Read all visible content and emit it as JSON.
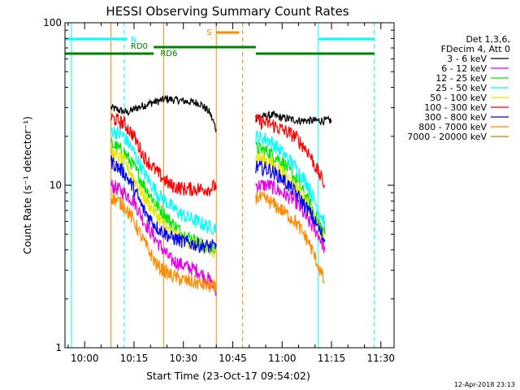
{
  "chart_data": {
    "type": "line",
    "title": "HESSI Observing Summary Count Rates",
    "xlabel": "Start Time (23-Oct-17 09:54:02)",
    "ylabel": "Count Rate (s⁻¹ detector⁻¹)",
    "y_scale": "log",
    "ylim": [
      1,
      100
    ],
    "y_ticks": [
      {
        "value": 1,
        "label": "1"
      },
      {
        "value": 10,
        "label": "10"
      },
      {
        "value": 100,
        "label": "100"
      }
    ],
    "xlim": [
      "09:54:02",
      "11:34:00"
    ],
    "x_ticks": [
      "10:00",
      "10:15",
      "10:30",
      "10:45",
      "11:00",
      "11:15",
      "11:30"
    ],
    "legend_header": [
      "Det 1,3,6,",
      "FDecim 4, Att 0"
    ],
    "series": [
      {
        "name": "3 - 6 keV",
        "color": "#000000",
        "x": [
          "10:08",
          "10:13",
          "10:16",
          "10:20",
          "10:25",
          "10:30",
          "10:35",
          "10:38",
          "10:40",
          "10:52",
          "10:57",
          "11:00",
          "11:05",
          "11:10",
          "11:15"
        ],
        "y": [
          30,
          28,
          30,
          32,
          34,
          33,
          32,
          28,
          22,
          26,
          27,
          26,
          25,
          25,
          25
        ]
      },
      {
        "name": "6 - 12 keV",
        "color": "#e600e6",
        "x": [
          "10:08",
          "10:12",
          "10:15",
          "10:18",
          "10:22",
          "10:26",
          "10:30",
          "10:34",
          "10:38",
          "10:40",
          "10:52",
          "10:56",
          "11:00",
          "11:04",
          "11:08",
          "11:11",
          "11:13"
        ],
        "y": [
          10,
          9,
          8,
          6,
          4.5,
          3.5,
          3.2,
          3.0,
          2.6,
          2.2,
          10,
          10,
          9,
          8,
          6,
          5,
          4
        ]
      },
      {
        "name": "12 - 25 keV",
        "color": "#00e600",
        "x": [
          "10:08",
          "10:12",
          "10:15",
          "10:18",
          "10:22",
          "10:26",
          "10:30",
          "10:34",
          "10:38",
          "10:40",
          "10:52",
          "10:56",
          "11:00",
          "11:04",
          "11:08",
          "11:11",
          "11:13"
        ],
        "y": [
          18,
          16,
          13,
          10,
          7.5,
          6,
          5,
          4.5,
          4,
          4.2,
          17,
          16,
          14,
          11,
          8,
          6,
          5
        ]
      },
      {
        "name": "25 - 50 keV",
        "color": "#00ffff",
        "x": [
          "10:08",
          "10:12",
          "10:15",
          "10:18",
          "10:22",
          "10:26",
          "10:30",
          "10:34",
          "10:38",
          "10:40",
          "10:52",
          "10:56",
          "11:00",
          "11:04",
          "11:08",
          "11:11",
          "11:13"
        ],
        "y": [
          22,
          20,
          16,
          12,
          9,
          7.5,
          6.5,
          6,
          5.5,
          5.5,
          20,
          19,
          16,
          13,
          10,
          7,
          6
        ]
      },
      {
        "name": "50 - 100 keV",
        "color": "#e6e600",
        "x": [
          "10:08",
          "10:12",
          "10:15",
          "10:18",
          "10:22",
          "10:26",
          "10:30",
          "10:34",
          "10:38",
          "10:40",
          "10:52",
          "10:56",
          "11:00",
          "11:04",
          "11:08",
          "11:11",
          "11:13"
        ],
        "y": [
          16,
          14,
          11,
          8.5,
          6.5,
          5.2,
          4.6,
          4.3,
          4,
          4,
          15,
          14,
          12,
          10,
          7.5,
          5.5,
          4.5
        ]
      },
      {
        "name": "100 - 300 keV",
        "color": "#ff0000",
        "x": [
          "10:08",
          "10:12",
          "10:15",
          "10:18",
          "10:22",
          "10:26",
          "10:30",
          "10:34",
          "10:38",
          "10:40",
          "10:52",
          "10:56",
          "11:00",
          "11:04",
          "11:08",
          "11:11",
          "11:13"
        ],
        "y": [
          26,
          24,
          20,
          15,
          12,
          10,
          9.5,
          9.5,
          9.5,
          10,
          25,
          24,
          22,
          20,
          16,
          12,
          10
        ]
      },
      {
        "name": "300 - 800 keV",
        "color": "#0000ff",
        "x": [
          "10:08",
          "10:12",
          "10:15",
          "10:18",
          "10:22",
          "10:26",
          "10:30",
          "10:34",
          "10:38",
          "10:40",
          "10:52",
          "10:56",
          "11:00",
          "11:04",
          "11:08",
          "11:11",
          "11:13"
        ],
        "y": [
          14,
          12,
          9.5,
          7,
          5.5,
          4.8,
          4.5,
          4.3,
          4.2,
          4.2,
          13,
          12.5,
          11,
          9,
          7,
          5.5,
          4.5
        ]
      },
      {
        "name": "800 - 7000 keV",
        "color": "#ff8c00",
        "x": [
          "10:08",
          "10:12",
          "10:15",
          "10:18",
          "10:22",
          "10:26",
          "10:30",
          "10:34",
          "10:38",
          "10:40",
          "10:52",
          "10:56",
          "11:00",
          "11:04",
          "11:08",
          "11:11",
          "11:13"
        ],
        "y": [
          8.5,
          7.5,
          6,
          4.5,
          3.2,
          2.8,
          2.6,
          2.5,
          2.4,
          2.3,
          8.5,
          8,
          7,
          6,
          4.5,
          3.2,
          2.5
        ]
      },
      {
        "name": "7000 - 20000 keV",
        "color": "#b8860b",
        "x": [],
        "y": []
      }
    ],
    "state_bars": [
      {
        "label": "N",
        "color": "#00ffff",
        "segments": [
          [
            "09:54:02",
            "10:13"
          ],
          [
            "11:11",
            "11:28"
          ]
        ]
      },
      {
        "label": "S",
        "color": "#ff8c00",
        "segments": [
          [
            "10:40",
            "10:47"
          ]
        ]
      },
      {
        "label": "RD0",
        "color": "#008000",
        "segments": [
          [
            "10:21",
            "10:52"
          ]
        ]
      },
      {
        "label": "RD6",
        "color": "#008000",
        "segments": [
          [
            "09:54:02",
            "10:21"
          ],
          [
            "10:52",
            "11:06"
          ],
          [
            "11:06",
            "11:28"
          ]
        ]
      }
    ],
    "vertical_lines": [
      {
        "x": "09:56",
        "color": "#00ffff",
        "style": "solid"
      },
      {
        "x": "10:12",
        "color": "#00ffff",
        "style": "dashed"
      },
      {
        "x": "10:08",
        "color": "#ff8c00",
        "style": "solid"
      },
      {
        "x": "10:24",
        "color": "#ff8c00",
        "style": "solid"
      },
      {
        "x": "10:40",
        "color": "#ff8c00",
        "style": "solid"
      },
      {
        "x": "10:48",
        "color": "#ff8c00",
        "style": "dashed"
      },
      {
        "x": "11:11",
        "color": "#00ffff",
        "style": "solid"
      },
      {
        "x": "11:28",
        "color": "#00ffff",
        "style": "dashed"
      }
    ],
    "grid": false,
    "legend_placement": "right"
  },
  "footer": {
    "timestamp": "12-Apr-2018 23:13"
  }
}
